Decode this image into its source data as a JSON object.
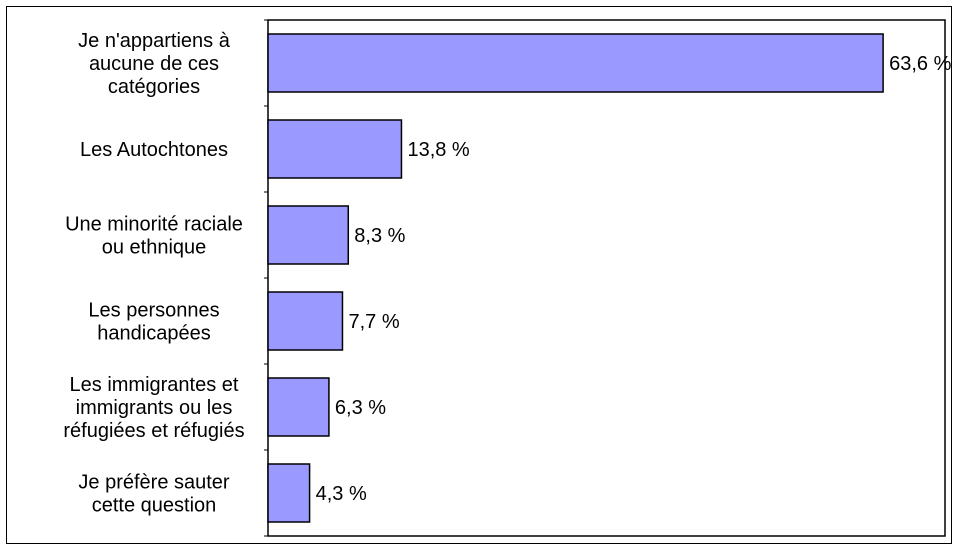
{
  "chart_data": {
    "type": "bar",
    "orientation": "horizontal",
    "categories": [
      [
        "Je n'appartiens à",
        "aucune de ces",
        "catégories"
      ],
      [
        "Les Autochtones"
      ],
      [
        "Une minorité raciale",
        "ou ethnique"
      ],
      [
        "Les personnes",
        "handicapées"
      ],
      [
        "Les immigrantes et",
        "immigrants ou les",
        "réfugiées et réfugiés"
      ],
      [
        "Je préfère sauter",
        "cette question"
      ]
    ],
    "values": [
      63.6,
      13.8,
      8.3,
      7.7,
      6.3,
      4.3
    ],
    "value_labels": [
      "63,6 %",
      "13,8 %",
      "8,3 %",
      "7,7 %",
      "6,3 %",
      "4,3 %"
    ],
    "xlim": [
      0,
      70
    ],
    "bar_color": "#9999ff",
    "bar_edge_color": "#000000",
    "grid": false,
    "legend": "none"
  }
}
